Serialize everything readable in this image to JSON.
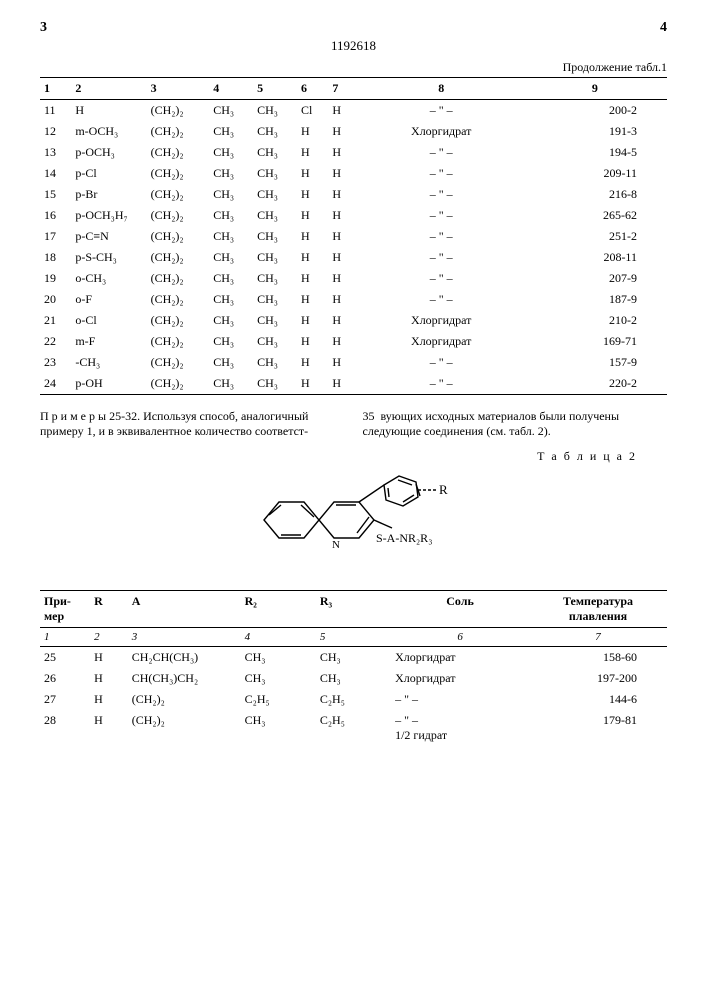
{
  "header": {
    "left_num": "3",
    "right_num": "4",
    "doc_number": "1192618",
    "continuation": "Продолжение табл.1"
  },
  "table1": {
    "column_numbers": [
      "1",
      "2",
      "3",
      "4",
      "5",
      "6",
      "7",
      "8",
      "9"
    ],
    "rows": [
      {
        "c1": "11",
        "c2": "H",
        "c3": "(CH₂)₂",
        "c4": "CH₃",
        "c5": "CH₃",
        "c6": "Cl",
        "c7": "H",
        "c8": "– \" –",
        "c9": "200-2"
      },
      {
        "c1": "12",
        "c2": "m-OCH₃",
        "c3": "(CH₂)₂",
        "c4": "CH₃",
        "c5": "CH₃",
        "c6": "H",
        "c7": "H",
        "c8": "Хлоргидрат",
        "c9": "191-3"
      },
      {
        "c1": "13",
        "c2": "p-OCH₃",
        "c3": "(CH₂)₂",
        "c4": "CH₃",
        "c5": "CH₃",
        "c6": "H",
        "c7": "H",
        "c8": "– \" –",
        "c9": "194-5"
      },
      {
        "c1": "14",
        "c2": "p-Cl",
        "c3": "(CH₂)₂",
        "c4": "CH₃",
        "c5": "CH₃",
        "c6": "H",
        "c7": "H",
        "c8": "– \" –",
        "c9": "209-11"
      },
      {
        "c1": "15",
        "c2": "p-Br",
        "c3": "(CH₂)₂",
        "c4": "CH₃",
        "c5": "CH₃",
        "c6": "H",
        "c7": "H",
        "c8": "– \" –",
        "c9": "216-8"
      },
      {
        "c1": "16",
        "c2": "p-OCH₃H₇",
        "c3": "(CH₂)₂",
        "c4": "CH₃",
        "c5": "CH₃",
        "c6": "H",
        "c7": "H",
        "c8": "– \" –",
        "c9": "265-62"
      },
      {
        "c1": "17",
        "c2": "p-C≡N",
        "c3": "(CH₂)₂",
        "c4": "CH₃",
        "c5": "CH₃",
        "c6": "H",
        "c7": "H",
        "c8": "– \" –",
        "c9": "251-2"
      },
      {
        "c1": "18",
        "c2": "p-S-CH₃",
        "c3": "(CH₂)₂",
        "c4": "CH₃",
        "c5": "CH₃",
        "c6": "H",
        "c7": "H",
        "c8": "– \" –",
        "c9": "208-11"
      },
      {
        "c1": "19",
        "c2": "o-CH₃",
        "c3": "(CH₂)₂",
        "c4": "CH₃",
        "c5": "CH₃",
        "c6": "H",
        "c7": "H",
        "c8": "– \" –",
        "c9": "207-9"
      },
      {
        "c1": "20",
        "c2": "o-F",
        "c3": "(CH₂)₂",
        "c4": "CH₃",
        "c5": "CH₃",
        "c6": "H",
        "c7": "H",
        "c8": "– \" –",
        "c9": "187-9"
      },
      {
        "c1": "21",
        "c2": "o-Cl",
        "c3": "(CH₂)₂",
        "c4": "CH₃",
        "c5": "CH₃",
        "c6": "H",
        "c7": "H",
        "c8": "Хлоргидрат",
        "c9": "210-2"
      },
      {
        "c1": "22",
        "c2": "m-F",
        "c3": "(CH₂)₂",
        "c4": "CH₃",
        "c5": "CH₃",
        "c6": "H",
        "c7": "H",
        "c8": "Хлоргидрат",
        "c9": "169-71"
      },
      {
        "c1": "23",
        "c2": "-CH₃",
        "c3": "(CH₂)₂",
        "c4": "CH₃",
        "c5": "CH₃",
        "c6": "H",
        "c7": "H",
        "c8": "– \" –",
        "c9": "157-9"
      },
      {
        "c1": "24",
        "c2": "p-OH",
        "c3": "(CH₂)₂",
        "c4": "CH₃",
        "c5": "CH₃",
        "c6": "H",
        "c7": "H",
        "c8": "– \" –",
        "c9": "220-2"
      }
    ]
  },
  "mid_text": {
    "left": "П р и м е р ы  25-32. Используя способ, аналогичный примеру 1, и в эквивалентное количество соответст-",
    "right_lineno": "35",
    "right": "вующих исходных материалов были получены следующие соединения (см. табл. 2).",
    "table_label": "Т а б л и ц а   2"
  },
  "chem": {
    "R": "R",
    "sub": "S-A-NR₂R₃",
    "N": "N"
  },
  "table2": {
    "headers": [
      "При-\nмер",
      "R",
      "A",
      "R₂",
      "R₃",
      "Соль",
      "Температура\nплавления"
    ],
    "column_numbers": [
      "1",
      "2",
      "3",
      "4",
      "5",
      "6",
      "7"
    ],
    "rows": [
      {
        "c1": "25",
        "c2": "H",
        "c3": "CH₂CH(CH₃)",
        "c4": "CH₃",
        "c5": "CH₃",
        "c6": "Хлоргидрат",
        "c7": "158-60"
      },
      {
        "c1": "26",
        "c2": "H",
        "c3": "CH(CH₃)CH₂",
        "c4": "CH₃",
        "c5": "CH₃",
        "c6": "Хлоргидрат",
        "c7": "197-200"
      },
      {
        "c1": "27",
        "c2": "H",
        "c3": "(CH₂)₂",
        "c4": "C₂H₅",
        "c5": "C₂H₅",
        "c6": "– \" –",
        "c7": "144-6"
      },
      {
        "c1": "28",
        "c2": "H",
        "c3": "(CH₂)₂",
        "c4": "CH₃",
        "c5": "C₂H₅",
        "c6": "– \" –\n1/2 гидрат",
        "c7": "179-81"
      }
    ]
  },
  "style": {
    "text_color": "#000000",
    "bg_color": "#ffffff",
    "rule_color": "#000000",
    "body_fontsize": 13,
    "table_fontsize": 12
  }
}
